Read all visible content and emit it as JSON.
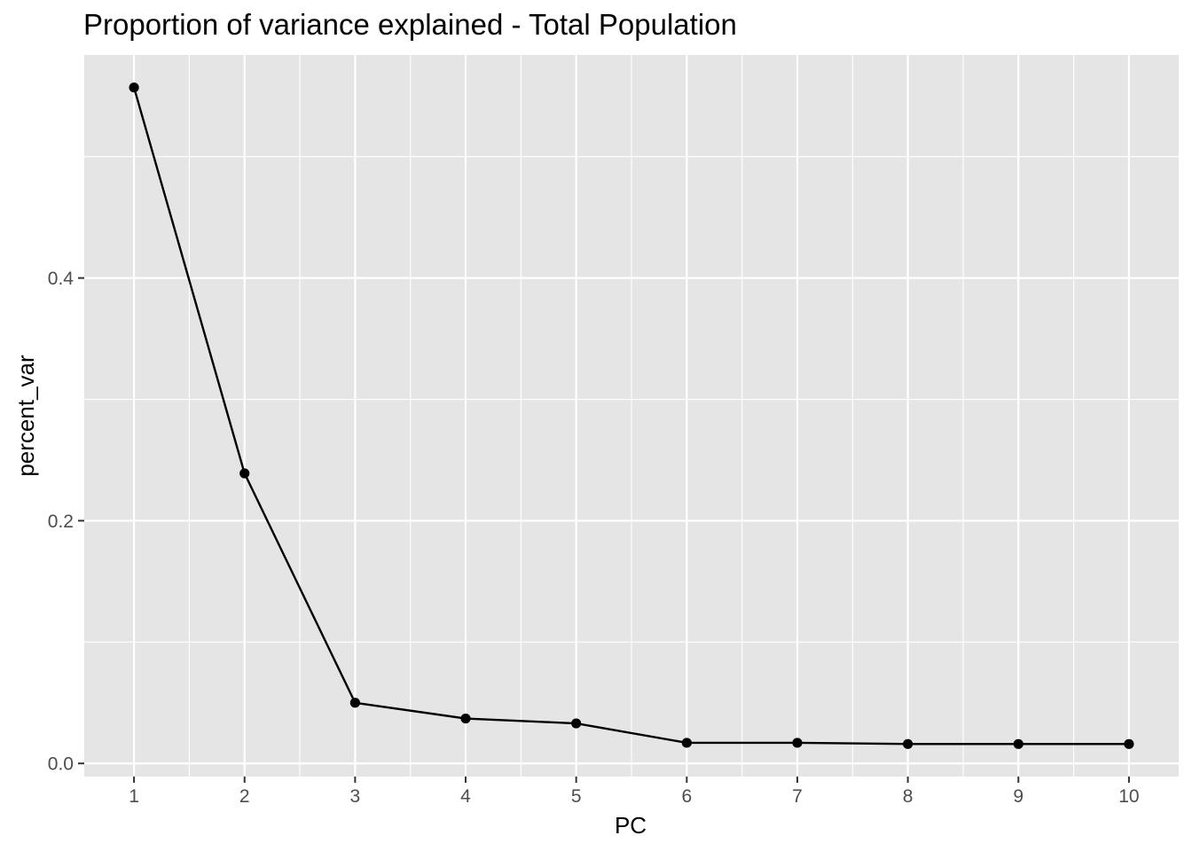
{
  "chart_data": {
    "type": "line",
    "title": "Proportion of variance explained - Total Population",
    "xlabel": "PC",
    "ylabel": "percent_var",
    "x": [
      1,
      2,
      3,
      4,
      5,
      6,
      7,
      8,
      9,
      10
    ],
    "series": [
      {
        "values": [
          0.557,
          0.239,
          0.05,
          0.037,
          0.033,
          0.017,
          0.017,
          0.016,
          0.016,
          0.016
        ]
      }
    ],
    "x_ticks": [
      "1",
      "2",
      "3",
      "4",
      "5",
      "6",
      "7",
      "8",
      "9",
      "10"
    ],
    "y_ticks": [
      "0.0",
      "0.2",
      "0.4"
    ],
    "xlim": [
      0.55,
      10.45
    ],
    "ylim": [
      -0.0108,
      0.5838
    ],
    "grid": true,
    "legend": "none",
    "colors": {
      "panel": "#e5e5e5",
      "grid": "#ffffff",
      "line": "#000000",
      "text": "#4d4d4d"
    }
  }
}
